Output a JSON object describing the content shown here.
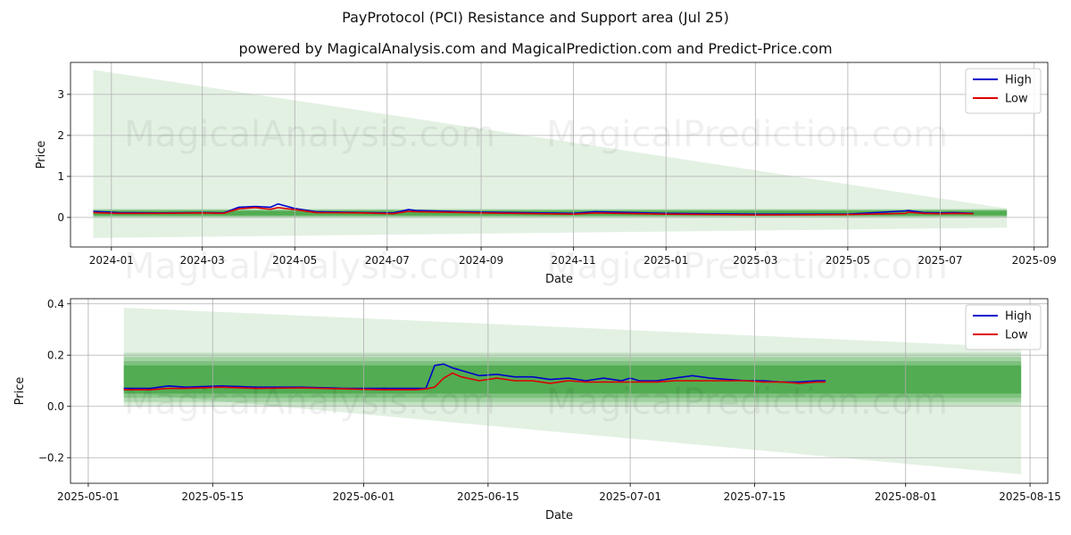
{
  "title": "PayProtocol (PCI) Resistance and Support area (Jul 25)",
  "subtitle": "powered by MagicalAnalysis.com and MagicalPrediction.com and Predict-Price.com",
  "watermarks": [
    "MagicalAnalysis.com",
    "MagicalPrediction.com"
  ],
  "colors": {
    "high": "#0000cc",
    "low": "#dd0000",
    "band": "#2e9a2e",
    "fan": "#c7e3c7",
    "grid": "#b0b0b0"
  },
  "chart_data": [
    {
      "type": "line",
      "xlabel": "Date",
      "ylabel": "Price",
      "x_ticks": [
        "2024-01",
        "2024-03",
        "2024-05",
        "2024-07",
        "2024-09",
        "2024-11",
        "2025-01",
        "2025-03",
        "2025-05",
        "2025-07",
        "2025-09"
      ],
      "y_ticks": [
        "0",
        "1",
        "2",
        "3"
      ],
      "xlim": [
        "2023-12-05",
        "2025-09-10"
      ],
      "ylim": [
        -0.72,
        3.78
      ],
      "grid": true,
      "legend": "top-right",
      "fan": {
        "start": "2023-12-20",
        "end": "2025-08-14",
        "start_top": 3.6,
        "start_bottom": -0.5,
        "end_top": 0.22,
        "end_bottom": -0.25
      },
      "band": {
        "start": "2023-12-20",
        "end": "2025-08-14",
        "top": 0.16,
        "bottom": 0.05
      },
      "series": [
        {
          "name": "High",
          "x": [
            "2023-12-20",
            "2024-01-05",
            "2024-02-01",
            "2024-03-01",
            "2024-03-15",
            "2024-03-25",
            "2024-04-05",
            "2024-04-15",
            "2024-04-20",
            "2024-05-01",
            "2024-05-15",
            "2024-06-15",
            "2024-07-05",
            "2024-07-15",
            "2024-07-20",
            "2024-09-01",
            "2024-11-01",
            "2024-11-15",
            "2025-01-01",
            "2025-03-01",
            "2025-05-01",
            "2025-06-08",
            "2025-06-10",
            "2025-06-20",
            "2025-07-01",
            "2025-07-10",
            "2025-07-23"
          ],
          "values": [
            0.15,
            0.12,
            0.11,
            0.12,
            0.11,
            0.25,
            0.27,
            0.25,
            0.33,
            0.22,
            0.14,
            0.12,
            0.11,
            0.19,
            0.17,
            0.13,
            0.1,
            0.14,
            0.1,
            0.08,
            0.08,
            0.16,
            0.17,
            0.12,
            0.11,
            0.12,
            0.1
          ]
        },
        {
          "name": "Low",
          "x": [
            "2023-12-20",
            "2024-01-05",
            "2024-02-01",
            "2024-03-01",
            "2024-03-15",
            "2024-03-25",
            "2024-04-05",
            "2024-04-15",
            "2024-04-20",
            "2024-05-01",
            "2024-05-15",
            "2024-06-15",
            "2024-07-05",
            "2024-07-15",
            "2024-07-20",
            "2024-09-01",
            "2024-11-01",
            "2024-11-15",
            "2025-01-01",
            "2025-03-01",
            "2025-05-01",
            "2025-06-08",
            "2025-06-10",
            "2025-06-20",
            "2025-07-01",
            "2025-07-10",
            "2025-07-23"
          ],
          "values": [
            0.12,
            0.1,
            0.1,
            0.11,
            0.1,
            0.21,
            0.24,
            0.2,
            0.24,
            0.19,
            0.12,
            0.11,
            0.09,
            0.15,
            0.14,
            0.11,
            0.08,
            0.11,
            0.08,
            0.06,
            0.07,
            0.1,
            0.13,
            0.1,
            0.09,
            0.1,
            0.09
          ]
        }
      ]
    },
    {
      "type": "line",
      "xlabel": "Date",
      "ylabel": "Price",
      "x_ticks": [
        "2025-05-01",
        "2025-05-15",
        "2025-06-01",
        "2025-06-15",
        "2025-07-01",
        "2025-07-15",
        "2025-08-01",
        "2025-08-15"
      ],
      "y_ticks": [
        "−0.2",
        "0.0",
        "0.2",
        "0.4"
      ],
      "xlim": [
        "2025-04-29",
        "2025-08-17"
      ],
      "ylim": [
        -0.3,
        0.42
      ],
      "grid": true,
      "legend": "top-right",
      "fan": {
        "start": "2025-05-05",
        "end": "2025-08-14",
        "start_top": 0.385,
        "start_bottom": 0.055,
        "end_top": 0.23,
        "end_bottom": -0.265
      },
      "band": {
        "start": "2025-05-05",
        "end": "2025-08-14",
        "top": 0.16,
        "bottom": 0.05
      },
      "series": [
        {
          "name": "High",
          "x": [
            "2025-05-05",
            "2025-05-08",
            "2025-05-10",
            "2025-05-12",
            "2025-05-16",
            "2025-05-20",
            "2025-05-25",
            "2025-05-30",
            "2025-06-03",
            "2025-06-07",
            "2025-06-08",
            "2025-06-09",
            "2025-06-10",
            "2025-06-11",
            "2025-06-12",
            "2025-06-14",
            "2025-06-16",
            "2025-06-18",
            "2025-06-20",
            "2025-06-22",
            "2025-06-24",
            "2025-06-26",
            "2025-06-28",
            "2025-06-30",
            "2025-07-01",
            "2025-07-02",
            "2025-07-04",
            "2025-07-06",
            "2025-07-08",
            "2025-07-10",
            "2025-07-12",
            "2025-07-14",
            "2025-07-16",
            "2025-07-18",
            "2025-07-20",
            "2025-07-22",
            "2025-07-23"
          ],
          "values": [
            0.07,
            0.07,
            0.08,
            0.075,
            0.08,
            0.075,
            0.075,
            0.07,
            0.07,
            0.07,
            0.07,
            0.16,
            0.165,
            0.15,
            0.14,
            0.12,
            0.125,
            0.115,
            0.115,
            0.105,
            0.11,
            0.1,
            0.11,
            0.1,
            0.11,
            0.1,
            0.1,
            0.11,
            0.12,
            0.11,
            0.105,
            0.1,
            0.1,
            0.095,
            0.095,
            0.1,
            0.1
          ]
        },
        {
          "name": "Low",
          "x": [
            "2025-05-05",
            "2025-05-08",
            "2025-05-10",
            "2025-05-12",
            "2025-05-16",
            "2025-05-20",
            "2025-05-25",
            "2025-05-30",
            "2025-06-03",
            "2025-06-07",
            "2025-06-08",
            "2025-06-09",
            "2025-06-10",
            "2025-06-11",
            "2025-06-12",
            "2025-06-14",
            "2025-06-16",
            "2025-06-18",
            "2025-06-20",
            "2025-06-22",
            "2025-06-24",
            "2025-06-26",
            "2025-06-28",
            "2025-06-30",
            "2025-07-01",
            "2025-07-02",
            "2025-07-04",
            "2025-07-06",
            "2025-07-08",
            "2025-07-10",
            "2025-07-12",
            "2025-07-14",
            "2025-07-16",
            "2025-07-18",
            "2025-07-20",
            "2025-07-22",
            "2025-07-23"
          ],
          "values": [
            0.065,
            0.065,
            0.07,
            0.07,
            0.075,
            0.07,
            0.072,
            0.068,
            0.065,
            0.065,
            0.068,
            0.075,
            0.11,
            0.13,
            0.115,
            0.1,
            0.11,
            0.1,
            0.1,
            0.09,
            0.1,
            0.095,
            0.095,
            0.095,
            0.095,
            0.095,
            0.095,
            0.1,
            0.1,
            0.1,
            0.1,
            0.1,
            0.095,
            0.095,
            0.09,
            0.095,
            0.095
          ]
        }
      ]
    }
  ]
}
